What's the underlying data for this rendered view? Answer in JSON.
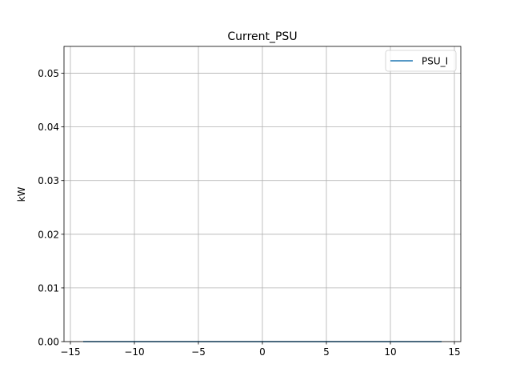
{
  "chart_data": {
    "type": "line",
    "title": "Current_PSU",
    "xlabel": "",
    "ylabel": "kW",
    "xlim": [
      -15.5,
      15.5
    ],
    "ylim": [
      0,
      0.055
    ],
    "x_ticks": [
      -15,
      -10,
      -5,
      0,
      5,
      10,
      15
    ],
    "x_tick_labels": [
      "−15",
      "−10",
      "−5",
      "0",
      "5",
      "10",
      "15"
    ],
    "y_ticks": [
      0.0,
      0.01,
      0.02,
      0.03,
      0.04,
      0.05
    ],
    "y_tick_labels": [
      "0.00",
      "0.01",
      "0.02",
      "0.03",
      "0.04",
      "0.05"
    ],
    "grid": true,
    "legend_position": "top-right",
    "series": [
      {
        "name": "PSU_I",
        "color": "#1f77b4",
        "x": [
          -14,
          -10,
          -5,
          0,
          5,
          10,
          14
        ],
        "y": [
          0,
          0,
          0,
          0,
          0,
          0,
          0
        ]
      }
    ]
  }
}
